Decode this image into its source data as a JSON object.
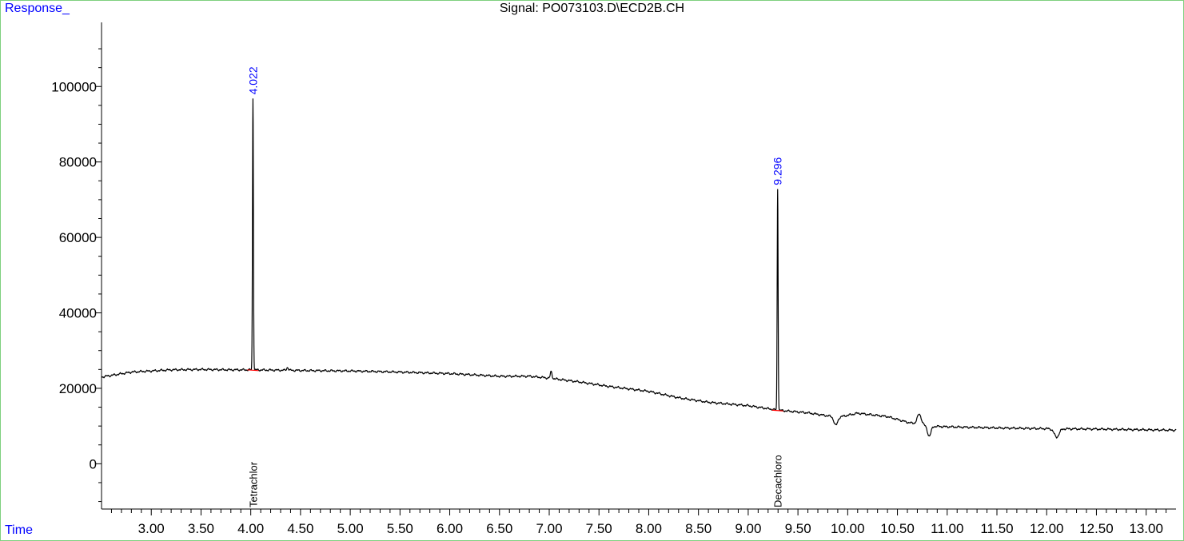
{
  "chart_data": {
    "type": "line",
    "title": "Signal: PO073103.D\\ECD2B.CH",
    "ylabel": "Response_",
    "xlabel": "Time",
    "xlim": [
      2.5,
      13.3
    ],
    "ylim": [
      -12000,
      117000
    ],
    "y_ticks": [
      0,
      20000,
      40000,
      60000,
      80000,
      100000
    ],
    "x_tick_labels": [
      "3.00",
      "3.50",
      "4.00",
      "4.50",
      "5.00",
      "5.50",
      "6.00",
      "6.50",
      "7.00",
      "7.50",
      "8.00",
      "8.50",
      "9.00",
      "9.50",
      "10.00",
      "10.50",
      "11.00",
      "11.50",
      "12.00",
      "12.50",
      "13.00"
    ],
    "x_tick_values": [
      3.0,
      3.5,
      4.0,
      4.5,
      5.0,
      5.5,
      6.0,
      6.5,
      7.0,
      7.5,
      8.0,
      8.5,
      9.0,
      9.5,
      10.0,
      10.5,
      11.0,
      11.5,
      12.0,
      12.5,
      13.0
    ],
    "peaks": [
      {
        "rt_label": "4.022",
        "rt": 4.022,
        "height": 97000,
        "compound": "Tetrachlor"
      },
      {
        "rt_label": "9.296",
        "rt": 9.296,
        "height": 73000,
        "compound": "Decachloro"
      }
    ],
    "baseline": {
      "x": [
        2.5,
        2.8,
        3.2,
        3.5,
        3.8,
        4.0,
        4.3,
        4.6,
        5.0,
        5.5,
        6.0,
        6.5,
        6.8,
        7.0,
        7.3,
        7.6,
        8.0,
        8.3,
        8.6,
        9.0,
        9.3,
        9.6,
        9.9,
        10.1,
        10.4,
        10.6,
        10.8,
        11.0,
        11.5,
        12.0,
        12.5,
        13.0,
        13.3
      ],
      "y": [
        23000,
        24300,
        24900,
        25000,
        24900,
        24900,
        24800,
        24700,
        24600,
        24300,
        23900,
        23200,
        23200,
        22700,
        21700,
        20500,
        19200,
        17500,
        16300,
        15400,
        14200,
        13500,
        12300,
        13400,
        12500,
        11000,
        10000,
        9800,
        9500,
        9300,
        9200,
        9000,
        8900
      ]
    },
    "baseline_features": [
      {
        "x": 4.37,
        "dy": 800,
        "w": 0.012
      },
      {
        "x": 7.02,
        "dy": 1800,
        "w": 0.012
      },
      {
        "x": 9.88,
        "dy": -2200,
        "w": 0.025
      },
      {
        "x": 10.72,
        "dy": 2700,
        "w": 0.03
      },
      {
        "x": 10.82,
        "dy": -2600,
        "w": 0.025
      },
      {
        "x": 12.1,
        "dy": -2200,
        "w": 0.035
      }
    ],
    "grid": false,
    "colors": {
      "trace": "#000000",
      "peak_label": "#0000ff",
      "baseline_mark": "#ff0000",
      "axis_label": "#0000ff",
      "frame": "#7fd07f"
    }
  }
}
